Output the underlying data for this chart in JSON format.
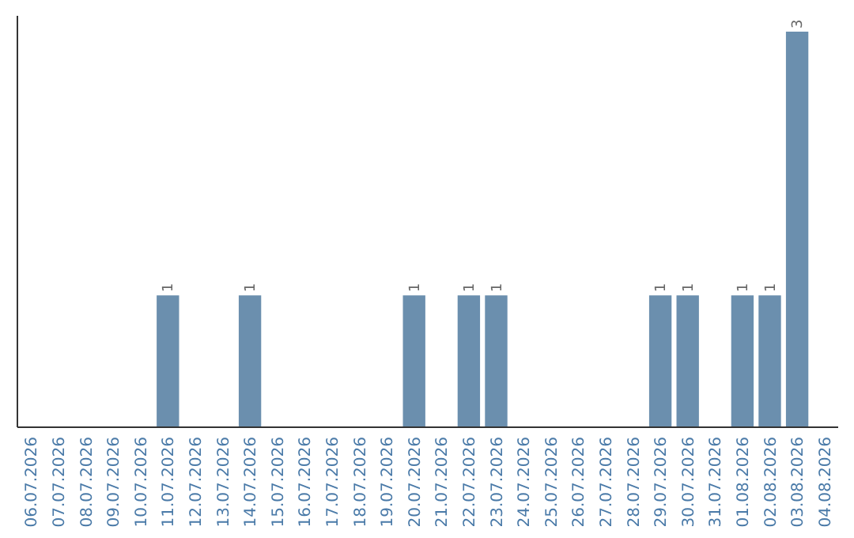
{
  "chart_data": {
    "type": "bar",
    "categories": [
      "06.07.2026",
      "07.07.2026",
      "08.07.2026",
      "09.07.2026",
      "10.07.2026",
      "11.07.2026",
      "12.07.2026",
      "13.07.2026",
      "14.07.2026",
      "15.07.2026",
      "16.07.2026",
      "17.07.2026",
      "18.07.2026",
      "19.07.2026",
      "20.07.2026",
      "21.07.2026",
      "22.07.2026",
      "23.07.2026",
      "24.07.2026",
      "25.07.2026",
      "26.07.2026",
      "27.07.2026",
      "28.07.2026",
      "29.07.2026",
      "30.07.2026",
      "31.07.2026",
      "01.08.2026",
      "02.08.2026",
      "03.08.2026",
      "04.08.2026"
    ],
    "values": [
      0,
      0,
      0,
      0,
      0,
      1,
      0,
      0,
      1,
      0,
      0,
      0,
      0,
      0,
      1,
      0,
      1,
      1,
      0,
      0,
      0,
      0,
      0,
      1,
      1,
      0,
      1,
      1,
      3,
      0
    ],
    "value_labels": [
      null,
      null,
      null,
      null,
      null,
      "1",
      null,
      null,
      "1",
      null,
      null,
      null,
      null,
      null,
      "1",
      null,
      "1",
      "1",
      null,
      null,
      null,
      null,
      null,
      "1",
      "1",
      null,
      "1",
      "1",
      "3",
      null
    ],
    "color": "#6b8fae"
  }
}
